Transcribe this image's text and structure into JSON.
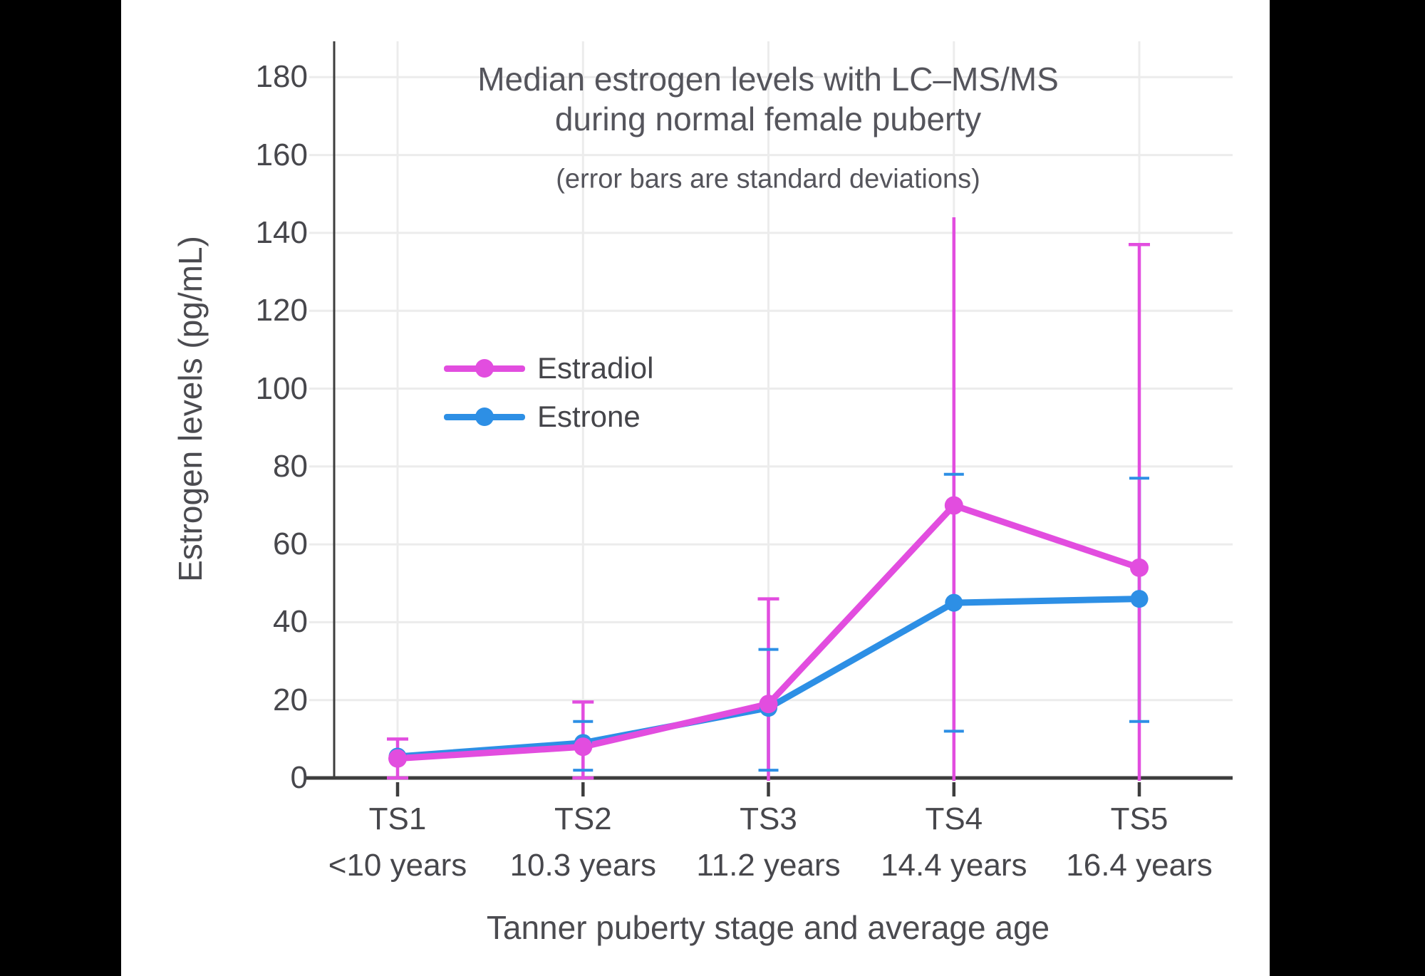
{
  "window": {
    "background": "#000000",
    "panel_background": "#ffffff"
  },
  "colors": {
    "estradiol": "#E24DDF",
    "estrone": "#2D8FE5",
    "grid": "#ECECEC",
    "axis": "#3D3D3D",
    "tick_text": "#47474C",
    "title_text": "#55555C"
  },
  "chart_data": {
    "type": "line",
    "title_lines": [
      "Median estrogen levels with LC–MS/MS",
      "during normal female puberty"
    ],
    "subtitle": "(error bars are standard deviations)",
    "xlabel": "Tanner puberty stage and average age",
    "ylabel": "Estrogen levels (pg/mL)",
    "ylim": [
      0,
      190
    ],
    "yticks": [
      0,
      20,
      40,
      60,
      80,
      100,
      120,
      140,
      160,
      180
    ],
    "grid": true,
    "legend_position": "inside-upper-left",
    "categories": [
      {
        "stage": "TS1",
        "age": "<10 years"
      },
      {
        "stage": "TS2",
        "age": "10.3 years"
      },
      {
        "stage": "TS3",
        "age": "11.2 years"
      },
      {
        "stage": "TS4",
        "age": "14.4 years"
      },
      {
        "stage": "TS5",
        "age": "16.4 years"
      }
    ],
    "series": [
      {
        "name": "Estradiol",
        "color": "#E24DDF",
        "values": [
          5,
          8,
          19,
          70,
          54
        ],
        "error_high": [
          10,
          19.5,
          46,
          144,
          137
        ],
        "error_low": [
          0,
          0,
          0,
          0,
          0
        ],
        "error_top_cap": [
          true,
          true,
          true,
          false,
          true
        ],
        "error_bottom_cap": [
          true,
          true,
          false,
          false,
          false
        ]
      },
      {
        "name": "Estrone",
        "color": "#2D8FE5",
        "values": [
          5.5,
          9,
          18,
          45,
          46
        ],
        "error_high": [
          null,
          14.5,
          33,
          78,
          77
        ],
        "error_low": [
          null,
          2,
          2,
          12,
          14.5
        ],
        "error_top_cap": [
          false,
          true,
          true,
          true,
          true
        ],
        "error_bottom_cap": [
          false,
          true,
          true,
          true,
          true
        ]
      }
    ]
  }
}
